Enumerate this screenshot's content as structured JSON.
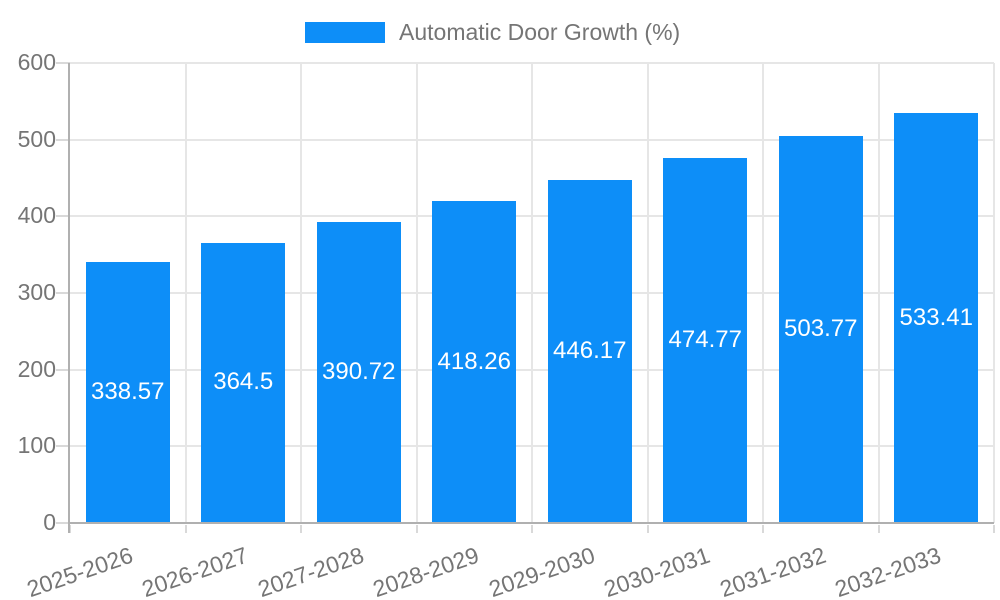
{
  "legend": {
    "label": "Automatic Door Growth (%)",
    "swatch_color": "#0d8ef8",
    "text_color": "#757575"
  },
  "chart_data": {
    "type": "bar",
    "title": "Automatic Door Growth (%)",
    "categories": [
      "2025-2026",
      "2026-2027",
      "2027-2028",
      "2028-2029",
      "2029-2030",
      "2030-2031",
      "2031-2032",
      "2032-2033"
    ],
    "values": [
      338.57,
      364.5,
      390.72,
      418.26,
      446.17,
      474.77,
      503.77,
      533.41
    ],
    "value_labels": [
      "338.57",
      "364.5",
      "390.72",
      "418.26",
      "446.17",
      "474.77",
      "503.77",
      "533.41"
    ],
    "xlabel": "",
    "ylabel": "",
    "ylim": [
      0,
      600
    ],
    "ytick_step": 100,
    "ytick_labels": [
      "0",
      "100",
      "200",
      "300",
      "400",
      "500",
      "600"
    ],
    "grid": true,
    "legend_position": "top-center",
    "colors": {
      "bar": "#0d8ef8",
      "bar_label": "#ffffff",
      "axis_text": "#757575",
      "gridline": "#e6e6e6",
      "axis_line": "#b0b0b0",
      "tick": "#d9d9d9"
    }
  }
}
